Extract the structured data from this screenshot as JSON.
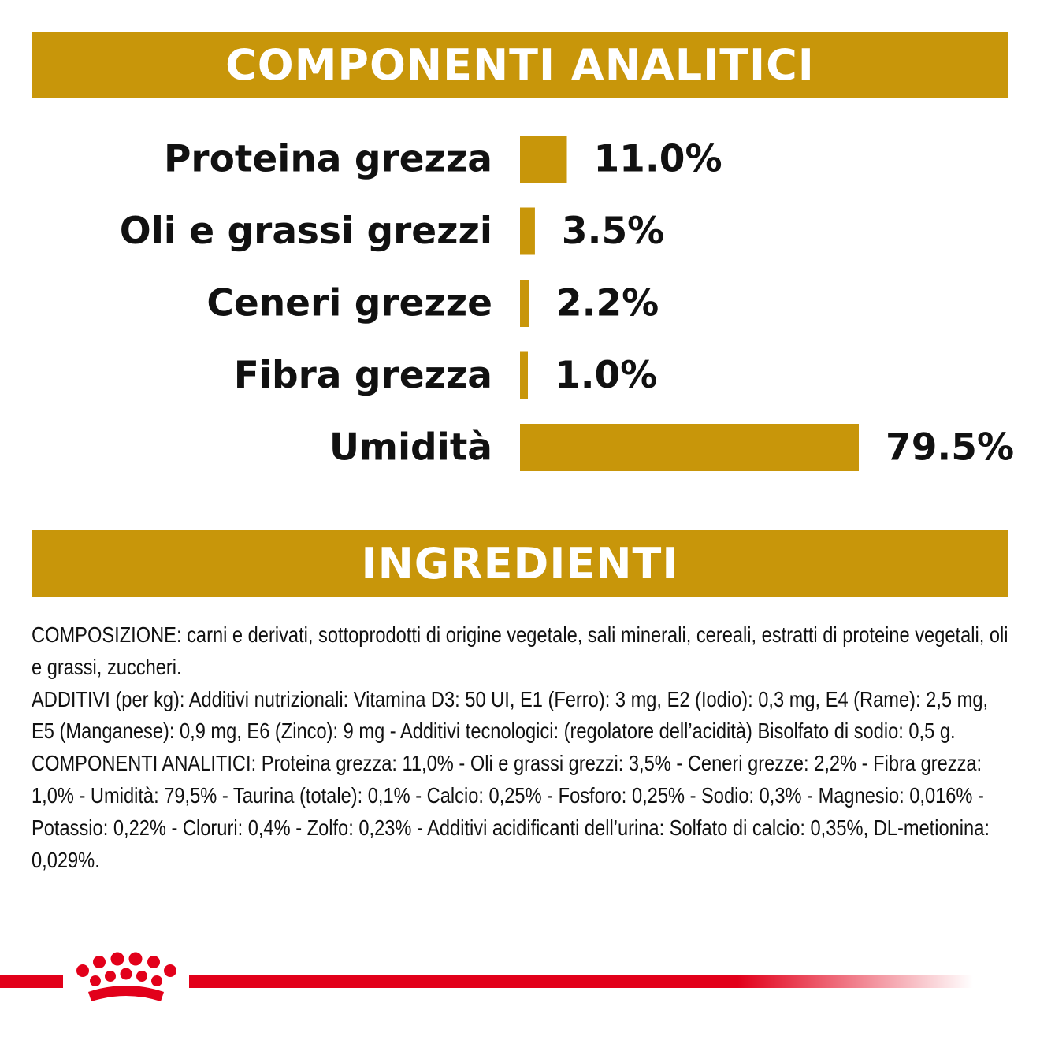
{
  "colors": {
    "gold": "#c8960a",
    "brand_red": "#e2001a"
  },
  "banners": {
    "analytic_title": "COMPONENTI ANALITICI",
    "ingredients_title": "INGREDIENTI"
  },
  "chart_data": {
    "type": "bar",
    "orientation": "horizontal",
    "categories": [
      "Proteina grezza",
      "Oli e grassi grezzi",
      "Ceneri grezze",
      "Fibra grezza",
      "Umidità"
    ],
    "values": [
      11.0,
      3.5,
      2.2,
      1.0,
      79.5
    ],
    "value_labels": [
      "11.0%",
      "3.5%",
      "2.2%",
      "1.0%",
      "79.5%"
    ],
    "unit": "%",
    "title": "",
    "xlabel": "",
    "ylabel": "",
    "grid": false,
    "legend": "none"
  },
  "ingredients": {
    "paragraphs": [
      "COMPOSIZIONE: carni e derivati, sottoprodotti di origine vegetale, sali minerali, cereali, estratti di proteine vegetali, oli e grassi, zuccheri.",
      "ADDITIVI (per kg): Additivi nutrizionali: Vitamina D3: 50 UI, E1 (Ferro): 3 mg, E2 (Iodio): 0,3 mg, E4 (Rame): 2,5 mg, E5 (Manganese): 0,9 mg, E6 (Zinco): 9 mg - Additivi tecnologici: (regolatore dell’acidità) Bisolfato di sodio: 0,5 g.",
      "COMPONENTI ANALITICI: Proteina grezza: 11,0% - Oli e grassi grezzi: 3,5% - Ceneri grezze: 2,2% - Fibra grezza: 1,0% - Umidità: 79,5% - Taurina (totale): 0,1% - Calcio: 0,25% - Fosforo: 0,25% - Sodio: 0,3% - Magnesio: 0,016% - Potassio: 0,22% - Cloruri: 0,4% - Zolfo: 0,23% - Additivi acidificanti dell’urina: Solfato di calcio: 0,35%, DL-metionina: 0,029%."
    ]
  },
  "logo": {
    "icon": "crown-icon"
  }
}
